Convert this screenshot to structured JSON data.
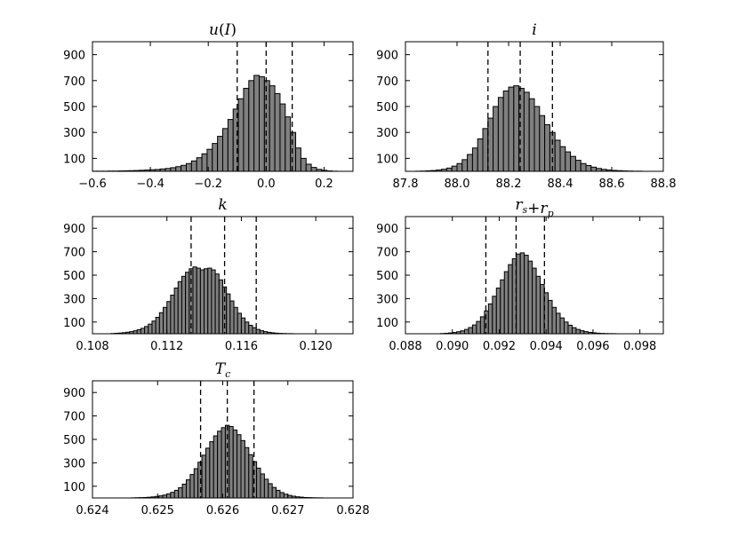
{
  "chart_data": [
    {
      "type": "bar",
      "title": "u(I)",
      "title_parts": [
        {
          "t": "u",
          "s": "i"
        },
        {
          "t": "(",
          "s": "n"
        },
        {
          "t": "I",
          "s": "i"
        },
        {
          "t": ")",
          "s": "n"
        }
      ],
      "xlim": [
        -0.6,
        0.3
      ],
      "ylim": [
        0,
        1000
      ],
      "xticks": [
        -0.6,
        -0.4,
        -0.2,
        0.0,
        0.2
      ],
      "xtick_labels": [
        "−0.6",
        "−0.4",
        "−0.2",
        "0.0",
        "0.2"
      ],
      "yticks": [
        100,
        300,
        500,
        700,
        900
      ],
      "ytick_labels": [
        "100",
        "300",
        "500",
        "700",
        "900"
      ],
      "bin_start": -0.6,
      "bin_width": 0.018,
      "values": [
        1,
        1,
        1,
        2,
        2,
        3,
        4,
        5,
        6,
        8,
        10,
        12,
        14,
        18,
        22,
        28,
        36,
        46,
        60,
        80,
        105,
        135,
        170,
        215,
        270,
        330,
        400,
        480,
        560,
        640,
        700,
        740,
        730,
        700,
        660,
        600,
        520,
        420,
        300,
        180,
        100,
        55,
        30,
        15,
        8,
        3,
        1,
        0,
        0,
        0
      ],
      "vlines": [
        -0.1,
        0.0,
        0.09
      ]
    },
    {
      "type": "bar",
      "title": "i",
      "title_parts": [
        {
          "t": "i",
          "s": "i"
        }
      ],
      "xlim": [
        87.8,
        88.8
      ],
      "ylim": [
        0,
        1000
      ],
      "xticks": [
        87.8,
        88.0,
        88.2,
        88.4,
        88.6,
        88.8
      ],
      "xtick_labels": [
        "87.8",
        "88.0",
        "88.2",
        "88.4",
        "88.6",
        "88.8"
      ],
      "yticks": [
        100,
        300,
        500,
        700,
        900
      ],
      "ytick_labels": [
        "100",
        "300",
        "500",
        "700",
        "900"
      ],
      "bin_start": 87.8,
      "bin_width": 0.02,
      "values": [
        0,
        0,
        1,
        2,
        4,
        6,
        10,
        16,
        25,
        40,
        60,
        90,
        130,
        180,
        250,
        330,
        410,
        500,
        570,
        620,
        650,
        660,
        640,
        610,
        560,
        500,
        430,
        360,
        300,
        240,
        190,
        150,
        115,
        85,
        60,
        45,
        32,
        22,
        15,
        10,
        7,
        5,
        3,
        2,
        1,
        1,
        0,
        0,
        0,
        0
      ],
      "vlines": [
        88.12,
        88.245,
        88.37
      ]
    },
    {
      "type": "bar",
      "title": "k",
      "title_parts": [
        {
          "t": "k",
          "s": "i"
        }
      ],
      "xlim": [
        0.108,
        0.122
      ],
      "ylim": [
        0,
        1000
      ],
      "xticks": [
        0.108,
        0.112,
        0.116,
        0.12
      ],
      "xtick_labels": [
        "0.108",
        "0.112",
        "0.116",
        "0.120"
      ],
      "yticks": [
        100,
        300,
        500,
        700,
        900
      ],
      "ytick_labels": [
        "100",
        "300",
        "500",
        "700",
        "900"
      ],
      "bin_start": 0.109,
      "bin_width": 0.0002,
      "values": [
        2,
        4,
        6,
        9,
        13,
        18,
        25,
        34,
        46,
        62,
        82,
        108,
        140,
        180,
        225,
        275,
        330,
        390,
        445,
        490,
        525,
        555,
        570,
        560,
        545,
        555,
        560,
        545,
        510,
        460,
        400,
        340,
        280,
        225,
        175,
        135,
        100,
        72,
        52,
        37,
        26,
        18,
        12,
        8,
        5,
        3,
        2,
        1,
        1,
        0
      ],
      "vlines": [
        0.1133,
        0.1151,
        0.1168
      ]
    },
    {
      "type": "bar",
      "title": "r_s + r_p",
      "title_parts": [
        {
          "t": "r",
          "s": "i"
        },
        {
          "t": "s",
          "s": "sub"
        },
        {
          "t": "+",
          "s": "n"
        },
        {
          "t": "r",
          "s": "i"
        },
        {
          "t": "p",
          "s": "sub"
        }
      ],
      "xlim": [
        0.088,
        0.099
      ],
      "ylim": [
        0,
        1000
      ],
      "xticks": [
        0.088,
        0.09,
        0.092,
        0.094,
        0.096,
        0.098
      ],
      "xtick_labels": [
        "0.088",
        "0.090",
        "0.092",
        "0.094",
        "0.096",
        "0.098"
      ],
      "yticks": [
        100,
        300,
        500,
        700,
        900
      ],
      "ytick_labels": [
        "100",
        "300",
        "500",
        "700",
        "900"
      ],
      "bin_start": 0.0895,
      "bin_width": 0.00017,
      "values": [
        2,
        4,
        7,
        11,
        17,
        25,
        37,
        53,
        75,
        105,
        145,
        195,
        255,
        320,
        390,
        460,
        530,
        590,
        640,
        680,
        690,
        670,
        620,
        560,
        490,
        420,
        350,
        285,
        225,
        175,
        135,
        100,
        73,
        52,
        37,
        26,
        18,
        12,
        8,
        5,
        3,
        2,
        1,
        1,
        0,
        0,
        0,
        0,
        0,
        0
      ],
      "vlines": [
        0.09143,
        0.09272,
        0.09393
      ]
    },
    {
      "type": "bar",
      "title": "T_c",
      "title_parts": [
        {
          "t": "T",
          "s": "i"
        },
        {
          "t": "c",
          "s": "sub"
        }
      ],
      "xlim": [
        0.624,
        0.628
      ],
      "ylim": [
        0,
        1000
      ],
      "xticks": [
        0.624,
        0.625,
        0.626,
        0.627,
        0.628
      ],
      "xtick_labels": [
        "0.624",
        "0.625",
        "0.626",
        "0.627",
        "0.628"
      ],
      "yticks": [
        100,
        300,
        500,
        700,
        900
      ],
      "ytick_labels": [
        "100",
        "300",
        "500",
        "700",
        "900"
      ],
      "bin_start": 0.6246,
      "bin_width": 6e-05,
      "values": [
        1,
        2,
        3,
        4,
        6,
        9,
        13,
        18,
        25,
        35,
        48,
        65,
        88,
        118,
        155,
        200,
        250,
        305,
        365,
        425,
        480,
        530,
        570,
        600,
        620,
        610,
        580,
        540,
        490,
        430,
        370,
        310,
        255,
        205,
        160,
        122,
        90,
        65,
        46,
        32,
        22,
        15,
        10,
        7,
        4,
        3,
        2,
        1,
        1,
        0
      ],
      "vlines": [
        0.62566,
        0.62607,
        0.62648
      ]
    }
  ]
}
